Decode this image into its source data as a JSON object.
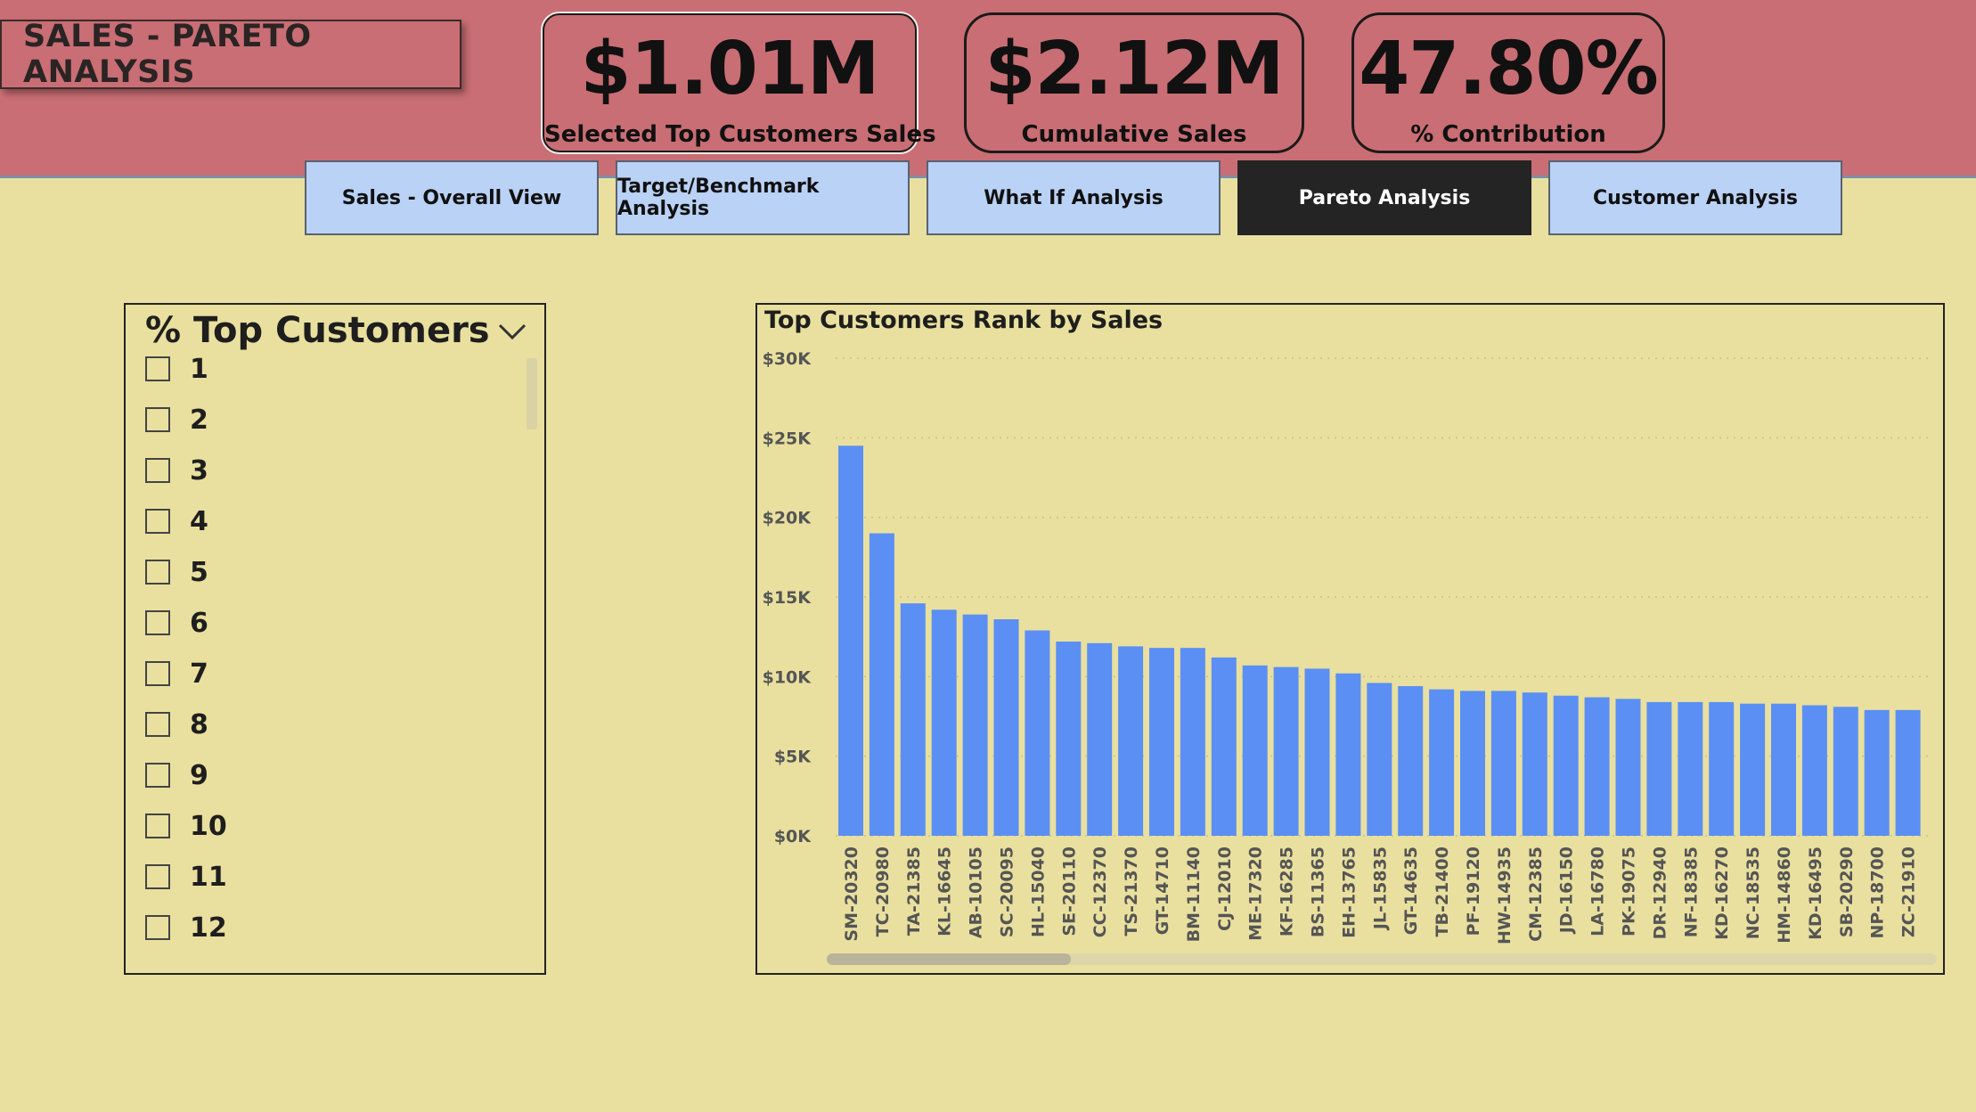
{
  "header": {
    "title": "SALES - PARETO ANALYSIS",
    "kpis": [
      {
        "value": "$1.01M",
        "label": "Selected Top Customers Sales"
      },
      {
        "value": "$2.12M",
        "label": "Cumulative Sales"
      },
      {
        "value": "47.80%",
        "label": "% Contribution"
      }
    ]
  },
  "nav": {
    "items": [
      {
        "label": "Sales - Overall View"
      },
      {
        "label": "Target/Benchmark Analysis"
      },
      {
        "label": "What If Analysis"
      },
      {
        "label": "Pareto Analysis",
        "active": true
      },
      {
        "label": "Customer Analysis"
      }
    ]
  },
  "slicer": {
    "title": "% Top Customers",
    "options": [
      "1",
      "2",
      "3",
      "4",
      "5",
      "6",
      "7",
      "8",
      "9",
      "10",
      "11",
      "12"
    ]
  },
  "colors": {
    "header_bg": "#c96e74",
    "page_bg": "#e9e09f",
    "bar": "#5b8ff3",
    "nav_bg": "#b9d2f6",
    "nav_active_bg": "#242424"
  },
  "chart_data": {
    "type": "bar",
    "title": "Top Customers Rank by Sales",
    "xlabel": "",
    "ylabel": "",
    "ylim": [
      0,
      30000
    ],
    "yticks": [
      0,
      5000,
      10000,
      15000,
      20000,
      25000,
      30000
    ],
    "ytick_labels": [
      "$0K",
      "$5K",
      "$10K",
      "$15K",
      "$20K",
      "$25K",
      "$30K"
    ],
    "grid": "horizontal dotted",
    "categories": [
      "SM-20320",
      "TC-20980",
      "TA-21385",
      "KL-16645",
      "AB-10105",
      "SC-20095",
      "HL-15040",
      "SE-20110",
      "CC-12370",
      "TS-21370",
      "GT-14710",
      "BM-11140",
      "CJ-12010",
      "ME-17320",
      "KF-16285",
      "BS-11365",
      "EH-13765",
      "JL-15835",
      "GT-14635",
      "TB-21400",
      "PF-19120",
      "HW-14935",
      "CM-12385",
      "JD-16150",
      "LA-16780",
      "PK-19075",
      "DR-12940",
      "NF-18385",
      "KD-16270",
      "NC-18535",
      "HM-14860",
      "KD-16495",
      "SB-20290",
      "NP-18700",
      "ZC-21910"
    ],
    "values": [
      24500,
      19000,
      14600,
      14200,
      13900,
      13600,
      12900,
      12200,
      12100,
      11900,
      11800,
      11800,
      11200,
      10700,
      10600,
      10500,
      10200,
      9600,
      9400,
      9200,
      9100,
      9100,
      9000,
      8800,
      8700,
      8600,
      8400,
      8400,
      8400,
      8300,
      8300,
      8200,
      8100,
      7900,
      7900
    ]
  }
}
